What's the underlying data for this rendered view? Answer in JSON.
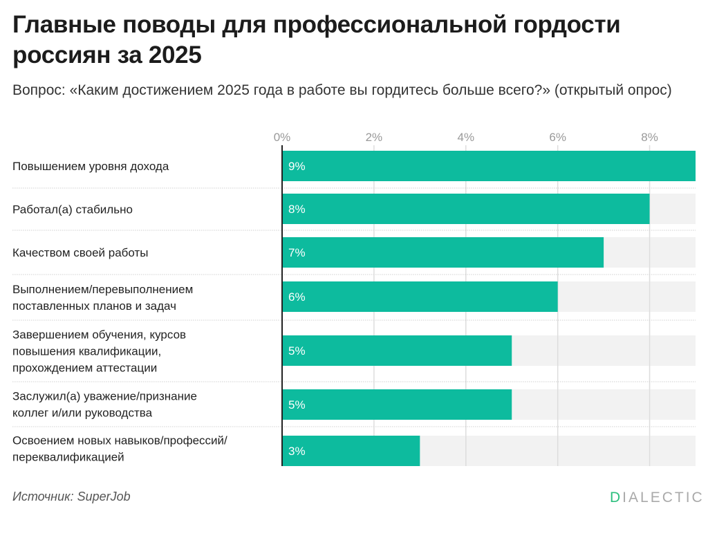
{
  "header": {
    "title": "Главные поводы для профессиональной гордости россиян за 2025",
    "subtitle": "Вопрос: «Каким достижением 2025 года в работе вы гордитесь больше всего?» (открытый опрос)"
  },
  "footer": {
    "source": "Источник: SuperJob",
    "brand_first": "D",
    "brand_rest": "IALECTIC"
  },
  "colors": {
    "bar": "#0dbb9e",
    "track": "#f2f2f2",
    "grid": "#dddddd",
    "tick_text": "#999999",
    "label_text": "#222222",
    "value_text": "#ffffff",
    "brand_accent": "#2dbf7e"
  },
  "chart_data": {
    "type": "bar",
    "orientation": "horizontal",
    "title": "Главные поводы для профессиональной гордости россиян за 2025",
    "xlabel": "",
    "ylabel": "",
    "xlim": [
      0,
      9
    ],
    "xticks": [
      0,
      2,
      4,
      6,
      8
    ],
    "xtick_labels": [
      "0%",
      "2%",
      "4%",
      "6%",
      "8%"
    ],
    "grid": true,
    "categories": [
      [
        "Повышением уровня дохода"
      ],
      [
        "Работал(а) стабильно"
      ],
      [
        "Качеством своей работы"
      ],
      [
        "Выполнением/перевыполнением",
        "поставленных планов и задач"
      ],
      [
        "Завершением обучения, курсов",
        "повышения квалификации,",
        "прохождением аттестации"
      ],
      [
        "Заслужил(а) уважение/признание",
        "коллег и/или руководства"
      ],
      [
        "Освоением новых навыков/профессий/",
        "переквалификацией"
      ]
    ],
    "values": [
      9,
      8,
      7,
      6,
      5,
      5,
      3
    ],
    "value_labels": [
      "9%",
      "8%",
      "7%",
      "6%",
      "5%",
      "5%",
      "3%"
    ]
  }
}
